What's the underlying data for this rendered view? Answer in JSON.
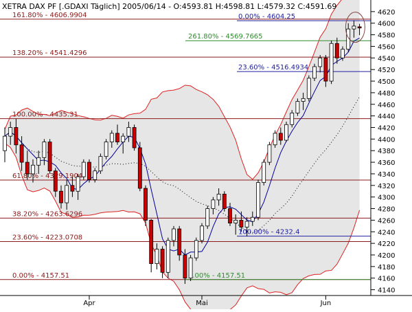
{
  "header": {
    "title": "XETRA DAX PF [.GDAXI  Täglich] 2005/06/14 - O:4593.81 H:4598.81 L:4579.32 C:4591.69"
  },
  "colors": {
    "background": "#ffffff",
    "band_fill": "#e6e6e6",
    "band_line": "#e02020",
    "fib_lower_line": "#8b1a1a",
    "fib_green_line": "#2e8b2e",
    "fib_blue_line": "#2020a0",
    "up_candle": "#ffffff",
    "down_candle": "#cc0000",
    "moving_average": "#000099",
    "highlight_circle": "#884444"
  },
  "chart_data": {
    "type": "candlestick",
    "title": "XETRA DAX PF [.GDAXI  Täglich] 2005/06/14 - O:4593.81 H:4598.81 L:4579.32 C:4591.69",
    "ylim": [
      4130,
      4640
    ],
    "y_ticks": [
      4140,
      4160,
      4180,
      4200,
      4220,
      4240,
      4260,
      4280,
      4300,
      4320,
      4340,
      4360,
      4380,
      4400,
      4420,
      4440,
      4460,
      4480,
      4500,
      4520,
      4540,
      4560,
      4580,
      4600,
      4620
    ],
    "x_ticks": [
      {
        "label": "Apr",
        "index": 15
      },
      {
        "label": "Mai",
        "index": 35
      },
      {
        "label": "Jun",
        "index": 57
      }
    ],
    "grid": false,
    "candles": [
      {
        "o": 4380,
        "h": 4420,
        "l": 4360,
        "c": 4405
      },
      {
        "o": 4405,
        "h": 4430,
        "l": 4390,
        "c": 4420
      },
      {
        "o": 4420,
        "h": 4435,
        "l": 4375,
        "c": 4390
      },
      {
        "o": 4390,
        "h": 4405,
        "l": 4345,
        "c": 4360
      },
      {
        "o": 4360,
        "h": 4380,
        "l": 4330,
        "c": 4340
      },
      {
        "o": 4340,
        "h": 4365,
        "l": 4325,
        "c": 4355
      },
      {
        "o": 4355,
        "h": 4380,
        "l": 4340,
        "c": 4368
      },
      {
        "o": 4368,
        "h": 4400,
        "l": 4355,
        "c": 4395
      },
      {
        "o": 4395,
        "h": 4400,
        "l": 4340,
        "c": 4345
      },
      {
        "o": 4345,
        "h": 4350,
        "l": 4300,
        "c": 4310
      },
      {
        "o": 4310,
        "h": 4320,
        "l": 4280,
        "c": 4290
      },
      {
        "o": 4290,
        "h": 4330,
        "l": 4278,
        "c": 4320
      },
      {
        "o": 4320,
        "h": 4335,
        "l": 4300,
        "c": 4310
      },
      {
        "o": 4310,
        "h": 4340,
        "l": 4295,
        "c": 4335
      },
      {
        "o": 4335,
        "h": 4365,
        "l": 4330,
        "c": 4360
      },
      {
        "o": 4360,
        "h": 4365,
        "l": 4325,
        "c": 4330
      },
      {
        "o": 4330,
        "h": 4350,
        "l": 4325,
        "c": 4345
      },
      {
        "o": 4345,
        "h": 4375,
        "l": 4340,
        "c": 4370
      },
      {
        "o": 4370,
        "h": 4400,
        "l": 4365,
        "c": 4395
      },
      {
        "o": 4395,
        "h": 4415,
        "l": 4385,
        "c": 4410
      },
      {
        "o": 4410,
        "h": 4425,
        "l": 4390,
        "c": 4395
      },
      {
        "o": 4395,
        "h": 4410,
        "l": 4375,
        "c": 4405
      },
      {
        "o": 4405,
        "h": 4430,
        "l": 4395,
        "c": 4420
      },
      {
        "o": 4420,
        "h": 4425,
        "l": 4380,
        "c": 4385
      },
      {
        "o": 4385,
        "h": 4395,
        "l": 4310,
        "c": 4315
      },
      {
        "o": 4315,
        "h": 4320,
        "l": 4250,
        "c": 4260
      },
      {
        "o": 4260,
        "h": 4262,
        "l": 4170,
        "c": 4185
      },
      {
        "o": 4185,
        "h": 4220,
        "l": 4175,
        "c": 4210
      },
      {
        "o": 4210,
        "h": 4215,
        "l": 4160,
        "c": 4170
      },
      {
        "o": 4170,
        "h": 4230,
        "l": 4160,
        "c": 4225
      },
      {
        "o": 4225,
        "h": 4250,
        "l": 4215,
        "c": 4245
      },
      {
        "o": 4245,
        "h": 4250,
        "l": 4190,
        "c": 4200
      },
      {
        "o": 4200,
        "h": 4210,
        "l": 4150,
        "c": 4160
      },
      {
        "o": 4160,
        "h": 4200,
        "l": 4155,
        "c": 4195
      },
      {
        "o": 4195,
        "h": 4230,
        "l": 4190,
        "c": 4225
      },
      {
        "o": 4225,
        "h": 4255,
        "l": 4220,
        "c": 4250
      },
      {
        "o": 4250,
        "h": 4285,
        "l": 4245,
        "c": 4280
      },
      {
        "o": 4280,
        "h": 4300,
        "l": 4270,
        "c": 4295
      },
      {
        "o": 4295,
        "h": 4315,
        "l": 4285,
        "c": 4305
      },
      {
        "o": 4305,
        "h": 4310,
        "l": 4275,
        "c": 4280
      },
      {
        "o": 4280,
        "h": 4290,
        "l": 4250,
        "c": 4255
      },
      {
        "o": 4255,
        "h": 4270,
        "l": 4235,
        "c": 4260
      },
      {
        "o": 4260,
        "h": 4275,
        "l": 4240,
        "c": 4248
      },
      {
        "o": 4248,
        "h": 4265,
        "l": 4232,
        "c": 4258
      },
      {
        "o": 4258,
        "h": 4275,
        "l": 4250,
        "c": 4265
      },
      {
        "o": 4265,
        "h": 4330,
        "l": 4260,
        "c": 4325
      },
      {
        "o": 4325,
        "h": 4365,
        "l": 4320,
        "c": 4360
      },
      {
        "o": 4360,
        "h": 4395,
        "l": 4355,
        "c": 4390
      },
      {
        "o": 4390,
        "h": 4415,
        "l": 4385,
        "c": 4410
      },
      {
        "o": 4410,
        "h": 4420,
        "l": 4390,
        "c": 4398
      },
      {
        "o": 4398,
        "h": 4430,
        "l": 4395,
        "c": 4425
      },
      {
        "o": 4425,
        "h": 4450,
        "l": 4420,
        "c": 4445
      },
      {
        "o": 4445,
        "h": 4470,
        "l": 4440,
        "c": 4465
      },
      {
        "o": 4465,
        "h": 4480,
        "l": 4450,
        "c": 4470
      },
      {
        "o": 4470,
        "h": 4510,
        "l": 4465,
        "c": 4505
      },
      {
        "o": 4505,
        "h": 4530,
        "l": 4500,
        "c": 4525
      },
      {
        "o": 4525,
        "h": 4545,
        "l": 4515,
        "c": 4540
      },
      {
        "o": 4540,
        "h": 4545,
        "l": 4490,
        "c": 4500
      },
      {
        "o": 4500,
        "h": 4570,
        "l": 4495,
        "c": 4565
      },
      {
        "o": 4565,
        "h": 4575,
        "l": 4530,
        "c": 4540
      },
      {
        "o": 4540,
        "h": 4560,
        "l": 4535,
        "c": 4555
      },
      {
        "o": 4555,
        "h": 4600,
        "l": 4550,
        "c": 4590
      },
      {
        "o": 4590,
        "h": 4605,
        "l": 4575,
        "c": 4595
      },
      {
        "o": 4593.81,
        "h": 4598.81,
        "l": 4579.32,
        "c": 4591.69
      }
    ],
    "fibonacci_levels": [
      {
        "label": "161.80% - 4606.9904",
        "value": 4606.99,
        "group": "lower"
      },
      {
        "label": "138.20% - 4541.4296",
        "value": 4541.43,
        "group": "lower"
      },
      {
        "label": "100.00% - 4435.31",
        "value": 4435.31,
        "group": "lower"
      },
      {
        "label": "61.80% - 4329.1904",
        "value": 4329.19,
        "group": "lower"
      },
      {
        "label": "38.20% - 4263.6296",
        "value": 4263.63,
        "group": "lower"
      },
      {
        "label": "23.60% - 4223.0708",
        "value": 4223.07,
        "group": "lower"
      },
      {
        "label": "0.00% - 4157.51",
        "value": 4157.51,
        "group": "lower"
      },
      {
        "label": "261.80% - 4569.7665",
        "value": 4569.77,
        "group": "green"
      },
      {
        "label": "0.00% - 4157.51",
        "value": 4157.51,
        "group": "green"
      },
      {
        "label": "0.00% - 4604.25",
        "value": 4604.25,
        "group": "blue"
      },
      {
        "label": "23.60% - 4516.4934",
        "value": 4516.49,
        "group": "blue"
      },
      {
        "label": "100.00% - 4232.4",
        "value": 4232.4,
        "group": "blue"
      }
    ]
  }
}
